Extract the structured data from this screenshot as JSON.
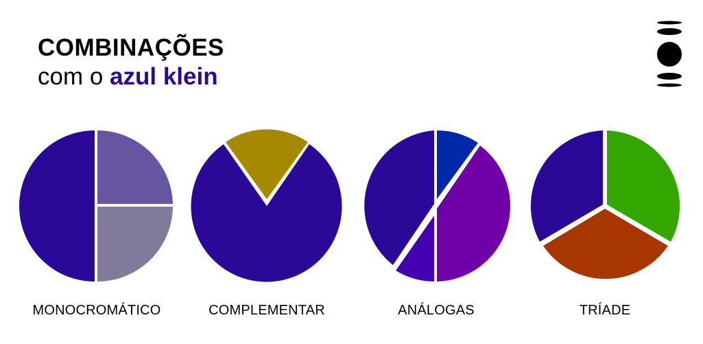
{
  "header": {
    "title": "COMBINAÇÕES",
    "subtitle_prefix": "com o",
    "subtitle_accent": "azul klein",
    "accent_color": "#2a0898"
  },
  "logo": {
    "icon": "stacked-discs-logo",
    "color": "#000000"
  },
  "schemes": [
    {
      "label": "MONOCROMÁTICO",
      "colors": [
        "#2a0898",
        "#6655a0",
        "#817a9a"
      ]
    },
    {
      "label": "COMPLEMENTAR",
      "colors": [
        "#2a0898",
        "#a78900"
      ]
    },
    {
      "label": "ANÁLOGAS",
      "colors": [
        "#2a0898",
        "#0028a8",
        "#7000a8",
        "#4400b0"
      ]
    },
    {
      "label": "TRÍADE",
      "colors": [
        "#2a0898",
        "#33a600",
        "#a83600"
      ]
    }
  ]
}
